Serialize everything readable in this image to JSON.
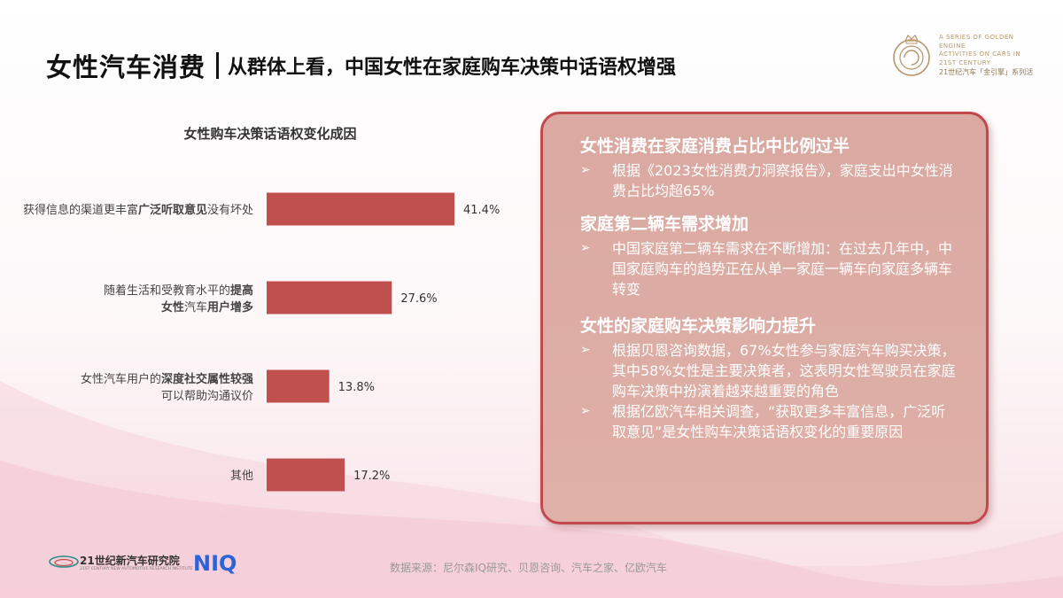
{
  "header": {
    "title_main": "女性汽车消费",
    "title_sub": "从群体上看，中国女性在家庭购车决策中话语权增强"
  },
  "brand": {
    "en_line1": "A SERIES OF GOLDEN ENGINE",
    "en_line2": "ACTIVITIES ON CARS IN 21ST CENTURY",
    "cn_line": "21世纪汽车「金引擎」系列活"
  },
  "chart_data": {
    "type": "bar",
    "orientation": "horizontal",
    "title": "女性购车决策话语权变化成因",
    "categories": [
      {
        "normal_before": "获得信息的渠道更丰富",
        "bold": "广泛听取意见",
        "normal_after": "没有坏处",
        "bold_before": "",
        "line2_bold": "",
        "line2_normal": ""
      },
      {
        "normal_before": "随着生活和受教育水平的",
        "bold": "提高",
        "normal_after": "",
        "bold_before": "女性",
        "line2_normal": "汽车",
        "line2_bold": "用户增多"
      },
      {
        "normal_before": "女性汽车用户的",
        "bold": "深度社交属性较强",
        "normal_after": "",
        "bold_before": "",
        "line2_normal": "可以帮助沟通议价",
        "line2_bold": ""
      },
      {
        "normal_before": "其他",
        "bold": "",
        "normal_after": "",
        "bold_before": "",
        "line2_normal": "",
        "line2_bold": ""
      }
    ],
    "values": [
      41.4,
      27.6,
      13.8,
      17.2
    ],
    "value_labels": [
      "41.4%",
      "27.6%",
      "13.8%",
      "17.2%"
    ],
    "unit": "%",
    "xlim": [
      0,
      50
    ],
    "bar_color": "#c0504d",
    "grid": false,
    "legend": "none"
  },
  "panel": {
    "sections": [
      {
        "heading": "女性消费在家庭消费占比中比例过半",
        "bullets": [
          "根据《2023女性消费力洞察报告》，家庭支出中女性消费占比均超65%"
        ]
      },
      {
        "heading": "家庭第二辆车需求增加",
        "bullets": [
          "中国家庭第二辆车需求在不断增加：在过去几年中，中国家庭购车的趋势正在从单一家庭一辆车向家庭多辆车转变"
        ]
      },
      {
        "heading": "女性的家庭购车决策影响力提升",
        "bullets": [
          "根据贝恩咨询数据，67%女性参与家庭汽车购买决策，其中58%女性是主要决策者，这表明女性驾驶员在家庭购车决策中扮演着越来越重要的角色",
          "根据亿欧汽车相关调查，“获取更多丰富信息，广泛听取意见”是女性购车决策话语权变化的重要原因"
        ]
      }
    ],
    "bullet_symbol": "➢",
    "border_color": "#c1494e"
  },
  "footer": {
    "org_name": "21世纪新汽车研究院",
    "org_en": "21ST CENTURY NEW AUTOMOTIVE RESEARCH INSTITUTE",
    "niq": "NIQ",
    "source": "数据来源：尼尔森IQ研究、贝恩咨询、汽车之家、亿欧汽车"
  }
}
